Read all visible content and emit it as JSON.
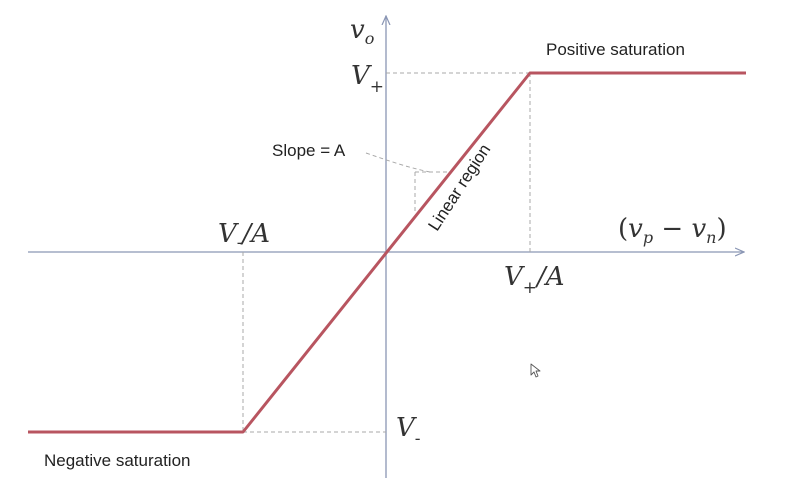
{
  "axes": {
    "y_symbol": "v",
    "y_subscript": "o",
    "x_open": "(",
    "x_v1": "v",
    "x_sub1": "p",
    "x_minus": " − ",
    "x_v2": "v",
    "x_sub2": "n",
    "x_close": ")"
  },
  "levels": {
    "vplus_symbol": "V",
    "vplus_sub": "+",
    "vminus_symbol": "V",
    "vminus_sub": "-",
    "vplus_over_a_symbol": "V",
    "vplus_over_a_sub": "+",
    "vplus_over_a_rest": "/A",
    "vminus_over_a_symbol": "V",
    "vminus_over_a_sub": "-",
    "vminus_over_a_rest": "/A"
  },
  "regions": {
    "positive": "Positive saturation",
    "negative": "Negative saturation",
    "linear": "Linear region",
    "slope": "Slope = A"
  },
  "colors": {
    "curve": "#b85560",
    "axis": "#8a96b4",
    "guide": "#a8a8a8"
  }
}
